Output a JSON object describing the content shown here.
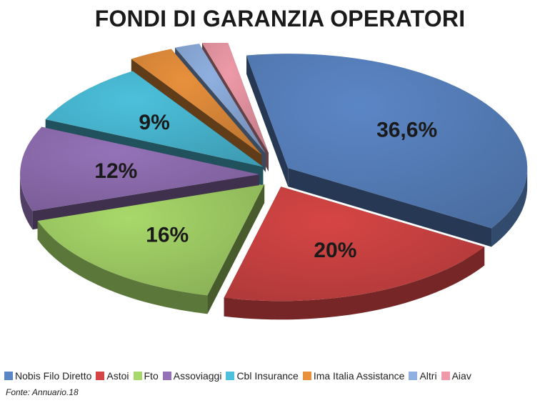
{
  "chart_data": {
    "type": "pie",
    "title": "FONDI DI GARANZIA OPERATORI",
    "slices": [
      {
        "name": "Nobis Filo Diretto",
        "value": 36.6,
        "label": "36,6%",
        "color": "#5b86c5"
      },
      {
        "name": "Astoi",
        "value": 20,
        "label": "20%",
        "color": "#d64545"
      },
      {
        "name": "Fto",
        "value": 16,
        "label": "16%",
        "color": "#a8d86a"
      },
      {
        "name": "Assoviaggi",
        "value": 12,
        "label": "12%",
        "color": "#9572b8"
      },
      {
        "name": "Cbl Insurance",
        "value": 9,
        "label": "9%",
        "color": "#4cc0dc"
      },
      {
        "name": "Ima Italia Assistance",
        "value": 3,
        "label": "",
        "color": "#e8903c"
      },
      {
        "name": "Altri",
        "value": 1.7,
        "label": "",
        "color": "#8fb0e0"
      },
      {
        "name": "Aiav",
        "value": 1.7,
        "label": "",
        "color": "#ef9aa8"
      }
    ],
    "legend_position": "bottom"
  },
  "source": "Fonte: Annuario.18"
}
